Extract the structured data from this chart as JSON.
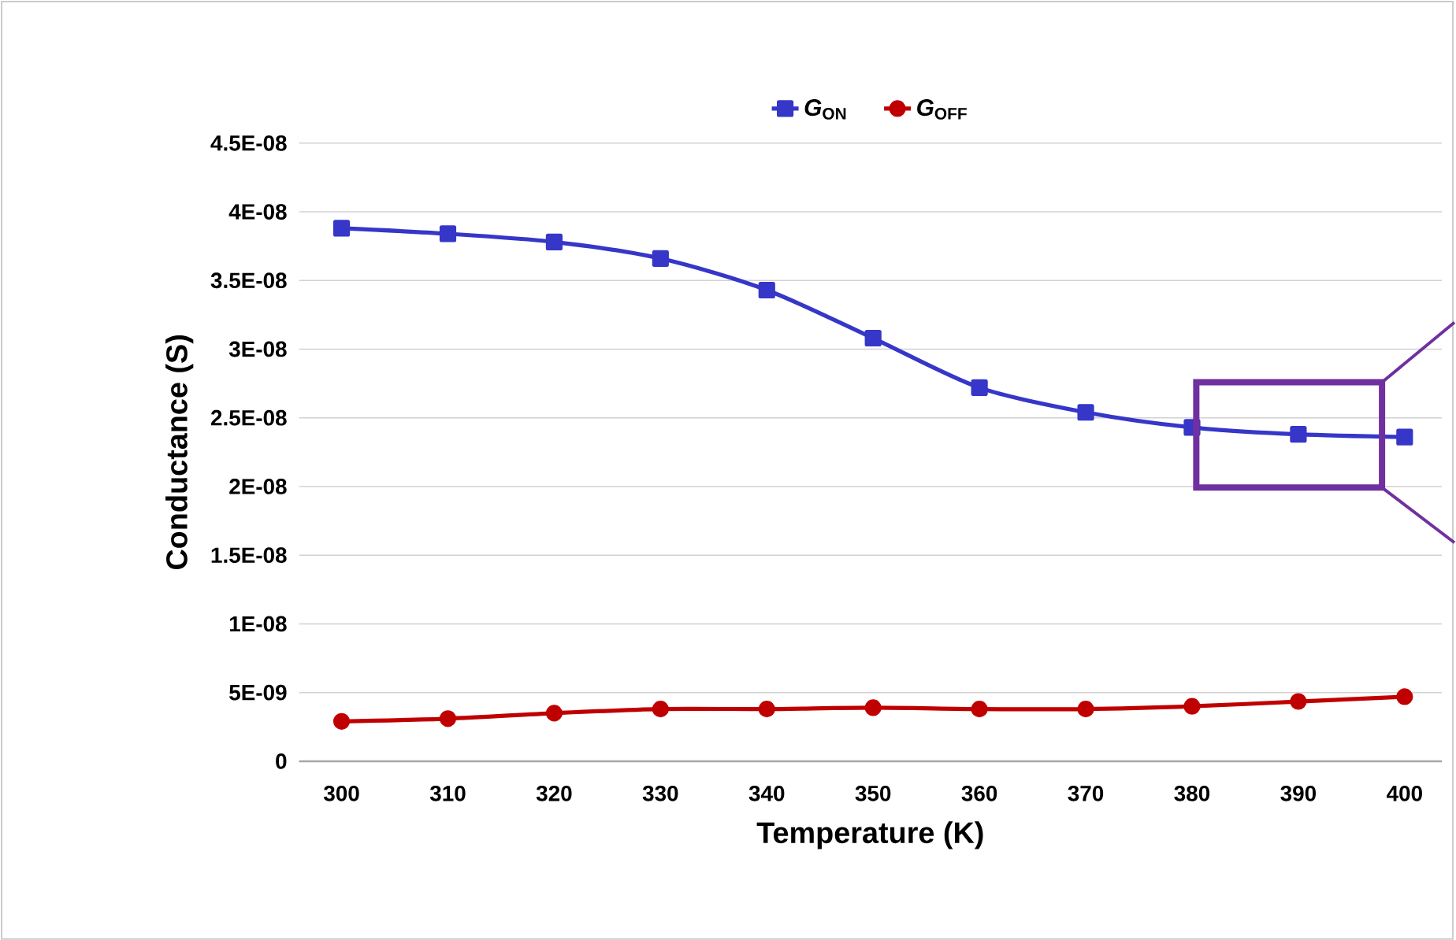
{
  "chart_data": {
    "type": "line",
    "xlabel": "Temperature (K)",
    "ylabel": "Conductance (S)",
    "categories": [
      "300",
      "310",
      "320",
      "330",
      "340",
      "350",
      "360",
      "370",
      "380",
      "390",
      "400"
    ],
    "series": [
      {
        "name": "*G*$_{ON}$",
        "color": "#3636c8",
        "marker": "square",
        "values": [
          3.88e-08,
          3.84e-08,
          3.78e-08,
          3.66e-08,
          3.43e-08,
          3.08e-08,
          2.72e-08,
          2.54e-08,
          2.43e-08,
          2.38e-08,
          2.36e-08
        ]
      },
      {
        "name": "*G*$_{OFF}$",
        "color": "#c00000",
        "marker": "circle",
        "values": [
          2.9e-09,
          3.1e-09,
          3.5e-09,
          3.8e-09,
          3.8e-09,
          3.9e-09,
          3.8e-09,
          3.8e-09,
          4e-09,
          4.35e-09,
          4.7e-09
        ]
      }
    ],
    "ylim": [
      0,
      4.5e-08
    ],
    "yticks": [
      0,
      {
        "value": 5e-09,
        "label": "5E-09"
      },
      {
        "value": 1e-08,
        "label": "1E-08"
      },
      {
        "value": 1.5e-08,
        "label": "1.5E-08"
      },
      {
        "value": 2e-08,
        "label": "2E-08"
      },
      {
        "value": 2.5e-08,
        "label": "2.5E-08"
      },
      {
        "value": 3e-08,
        "label": "3E-08"
      },
      {
        "value": 3.5e-08,
        "label": "3.5E-08"
      },
      {
        "value": 4e-08,
        "label": "4E-08"
      },
      {
        "value": 4.5e-08,
        "label": "4.5E-08"
      }
    ],
    "grid": "y",
    "legend": "top",
    "line_style": "solid"
  }
}
